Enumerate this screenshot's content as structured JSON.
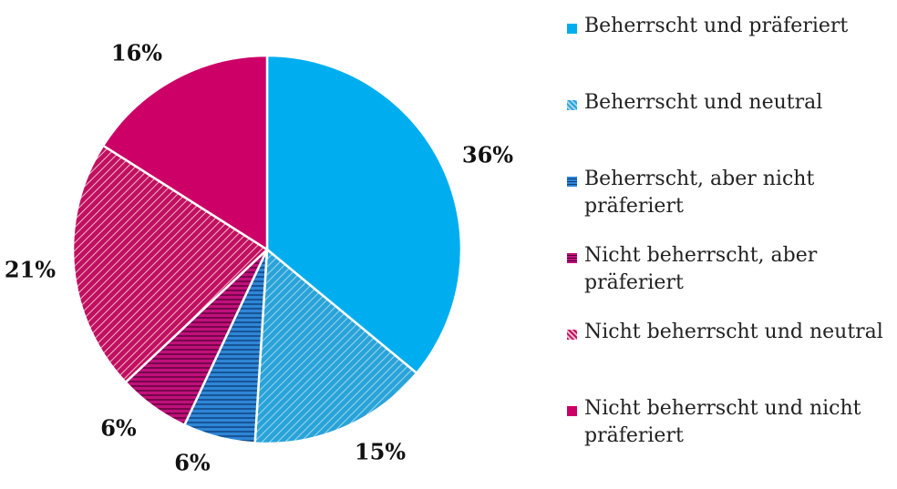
{
  "chart_data": {
    "type": "pie",
    "slices": [
      {
        "label": "Beherrscht und präferiert",
        "value": 36,
        "display": "36%",
        "color": "#00aeef",
        "pattern": "solid"
      },
      {
        "label": "Beherrscht und neutral",
        "value": 15,
        "display": "15%",
        "color": "#29a3d8",
        "pattern": "diagonal"
      },
      {
        "label": "Beherrscht, aber nicht präferiert",
        "value": 6,
        "display": "6%",
        "color": "#2e86d6",
        "pattern": "horizontal"
      },
      {
        "label": "Nicht beherrscht, aber präferiert",
        "value": 6,
        "display": "6%",
        "color": "#c0107a",
        "pattern": "horizontal"
      },
      {
        "label": "Nicht beherrscht und neutral",
        "value": 21,
        "display": "21%",
        "color": "#c0105f",
        "pattern": "diagonal"
      },
      {
        "label": "Nicht beherrscht und nicht präferiert",
        "value": 16,
        "display": "16%",
        "color": "#cc0066",
        "pattern": "solid"
      }
    ],
    "legend_position": "right"
  }
}
